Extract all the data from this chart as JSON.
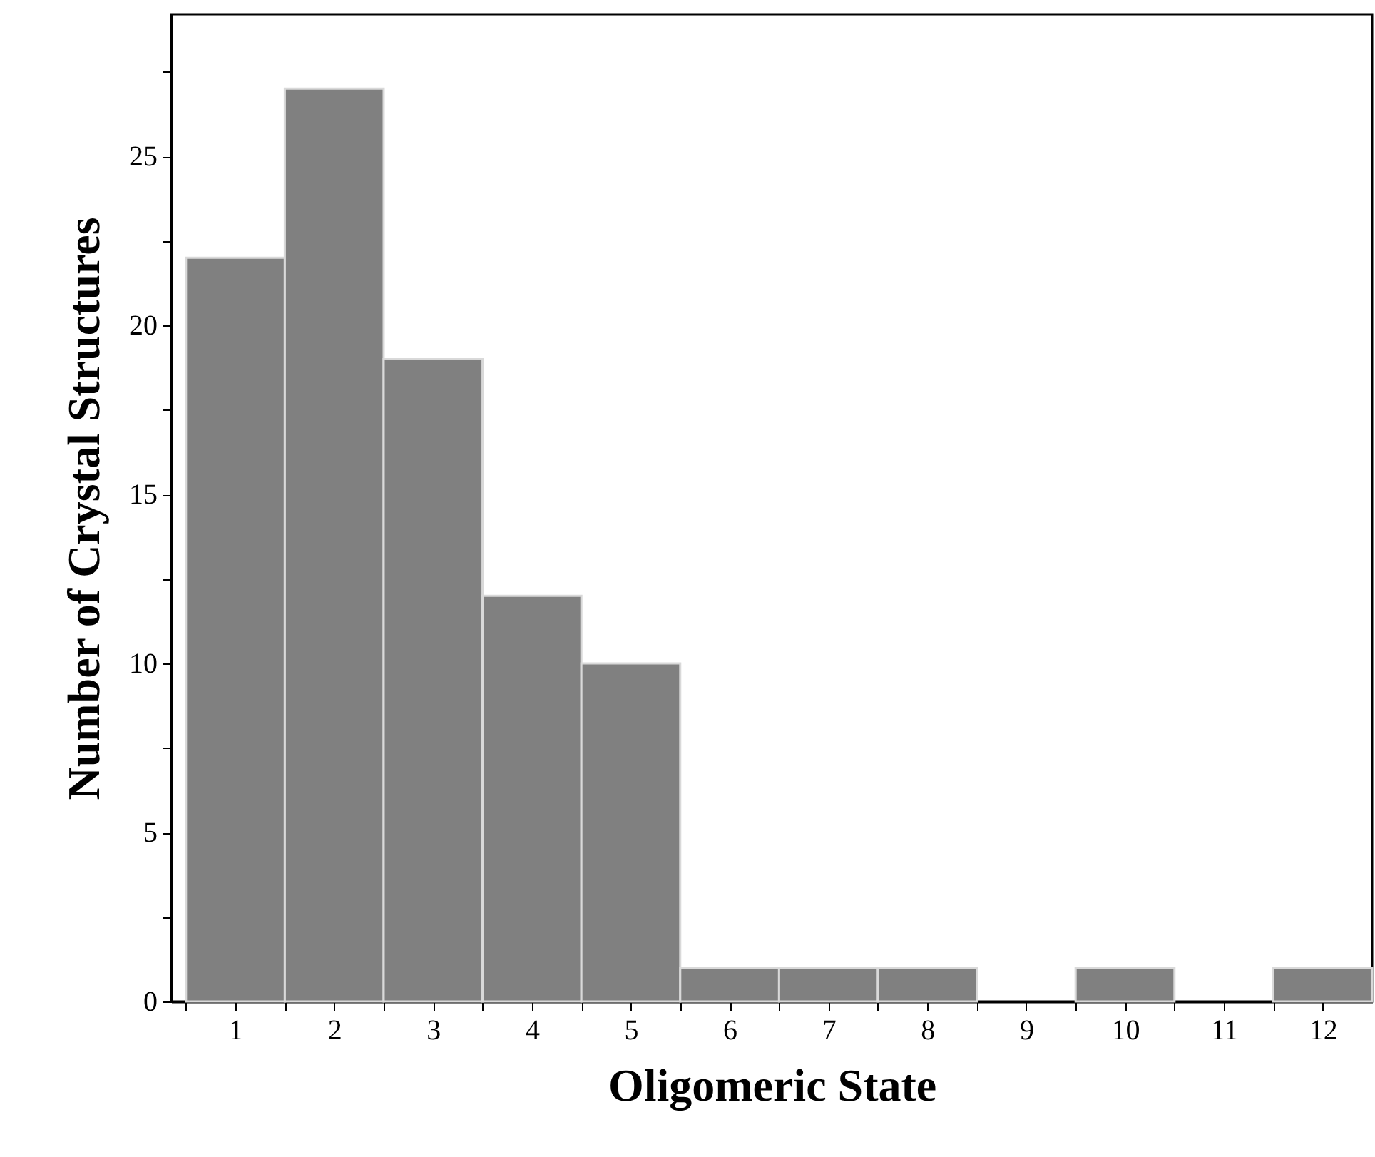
{
  "chart_data": {
    "type": "histogram",
    "xlabel": "Oligomeric State",
    "ylabel": "Number of Crystal Structures",
    "bins": [
      0.5,
      1.5,
      2.5,
      3.5,
      4.5,
      5.5,
      6.5,
      7.5,
      8.5,
      9.5,
      10.5,
      11.5,
      12.5
    ],
    "values": [
      22,
      27,
      19,
      12,
      10,
      1,
      1,
      1,
      0,
      1,
      0,
      1
    ],
    "color": "#808080",
    "xlim": [
      0.35,
      12.5
    ],
    "xticks": [
      {
        "value": 0.5,
        "label": null
      },
      1,
      {
        "value": 1.5,
        "label": null
      },
      2,
      {
        "value": 2.5,
        "label": null
      },
      3,
      {
        "value": 3.5,
        "label": null
      },
      4,
      {
        "value": 4.5,
        "label": null
      },
      5,
      {
        "value": 5.5,
        "label": null
      },
      6,
      {
        "value": 6.5,
        "label": null
      },
      7,
      {
        "value": 7.5,
        "label": null
      },
      8,
      {
        "value": 8.5,
        "label": null
      },
      9,
      {
        "value": 9.5,
        "label": null
      },
      10,
      {
        "value": 10.5,
        "label": null
      },
      11,
      {
        "value": 11.5,
        "label": null
      },
      12
    ],
    "ylim": [
      0,
      29.2
    ],
    "yticks": [
      0,
      {
        "value": 2.5,
        "label": null
      },
      5,
      {
        "value": 7.5,
        "label": null
      },
      10,
      {
        "value": 12.5,
        "label": null
      },
      15,
      {
        "value": 17.5,
        "label": null
      },
      20,
      {
        "value": 22.5,
        "label": null
      },
      25,
      {
        "value": 27.5,
        "label": null
      }
    ],
    "grid": false
  }
}
